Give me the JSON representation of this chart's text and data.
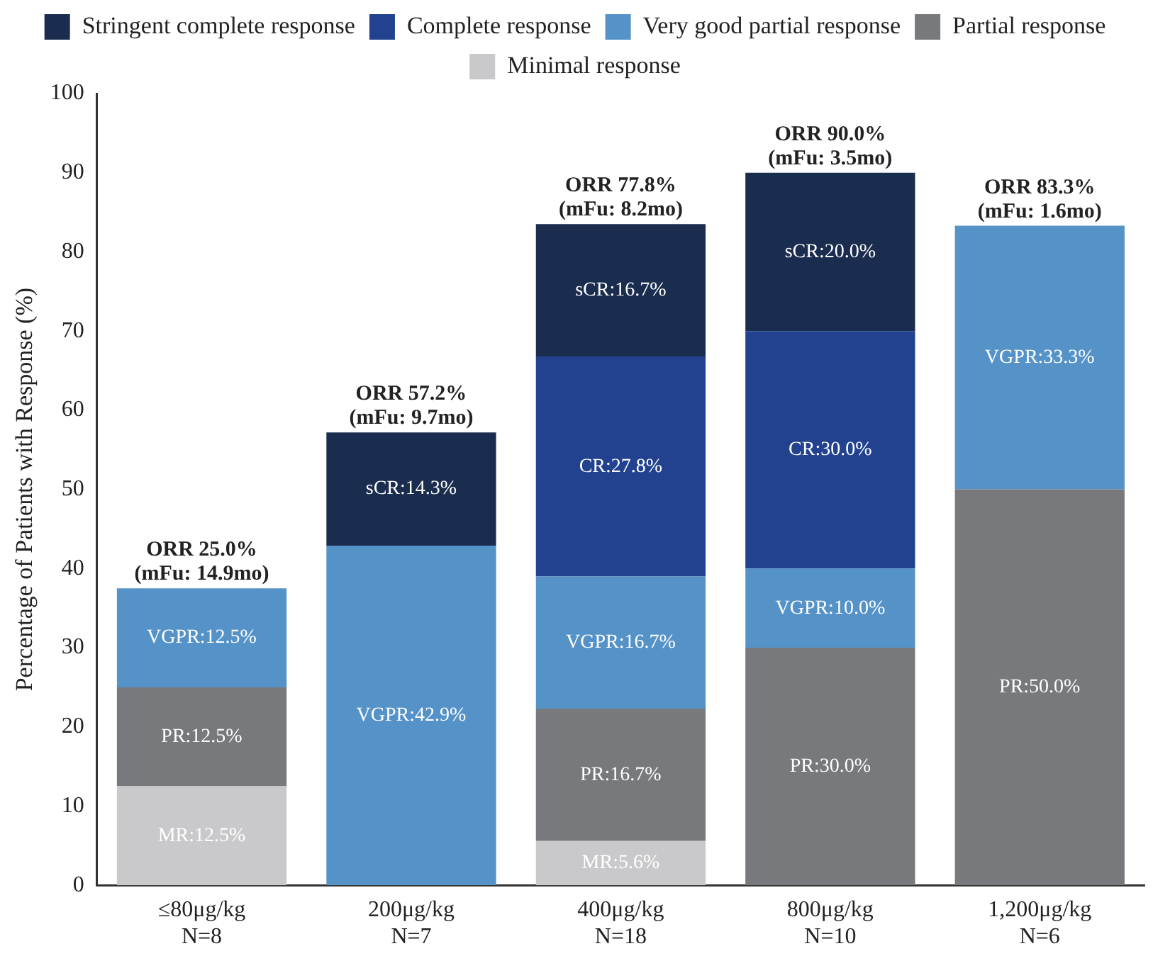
{
  "chart_data": {
    "type": "bar",
    "stacked": true,
    "ylabel": "Percentage of Patients with Response (%)",
    "categories": [
      "≤80μg/kg\nN=8",
      "200μg/kg\nN=7",
      "400μg/kg\nN=18",
      "800μg/kg\nN=10",
      "1,200μg/kg\nN=6"
    ],
    "series": [
      {
        "name": "Minimal response",
        "color": "#c9c9cb",
        "values": [
          12.5,
          null,
          5.6,
          null,
          null
        ],
        "value_labels": [
          "MR:12.5%",
          null,
          "MR:5.6%",
          null,
          null
        ]
      },
      {
        "name": "Partial response",
        "color": "#77797c",
        "values": [
          12.5,
          null,
          16.7,
          30.0,
          50.0
        ],
        "value_labels": [
          "PR:12.5%",
          null,
          "PR:16.7%",
          "PR:30.0%",
          "PR:50.0%"
        ]
      },
      {
        "name": "Very good partial response",
        "color": "#5592c8",
        "values": [
          12.5,
          42.9,
          16.7,
          10.0,
          33.3
        ],
        "value_labels": [
          "VGPR:12.5%",
          "VGPR:42.9%",
          "VGPR:16.7%",
          "VGPR:10.0%",
          "VGPR:33.3%"
        ]
      },
      {
        "name": "Complete response",
        "color": "#22428f",
        "values": [
          null,
          null,
          27.8,
          30.0,
          null
        ],
        "value_labels": [
          null,
          null,
          "CR:27.8%",
          "CR:30.0%",
          null
        ]
      },
      {
        "name": "Stringent complete response",
        "color": "#1b2d4f",
        "values": [
          null,
          14.3,
          16.7,
          20.0,
          null
        ],
        "value_labels": [
          null,
          "sCR:14.3%",
          "sCR:16.7%",
          "sCR:20.0%",
          null
        ]
      }
    ],
    "totals": [
      "ORR 25.0%\n(mFu: 14.9mo)",
      "ORR 57.2%\n(mFu: 9.7mo)",
      "ORR 77.8%\n(mFu: 8.2mo)",
      "ORR 90.0%\n(mFu: 3.5mo)",
      "ORR 83.3%\n(mFu: 1.6mo)"
    ],
    "ylim": [
      0,
      100
    ],
    "yticks": [
      0,
      10,
      20,
      30,
      40,
      50,
      60,
      70,
      80,
      90,
      100
    ],
    "grid": false,
    "legend": "top"
  }
}
